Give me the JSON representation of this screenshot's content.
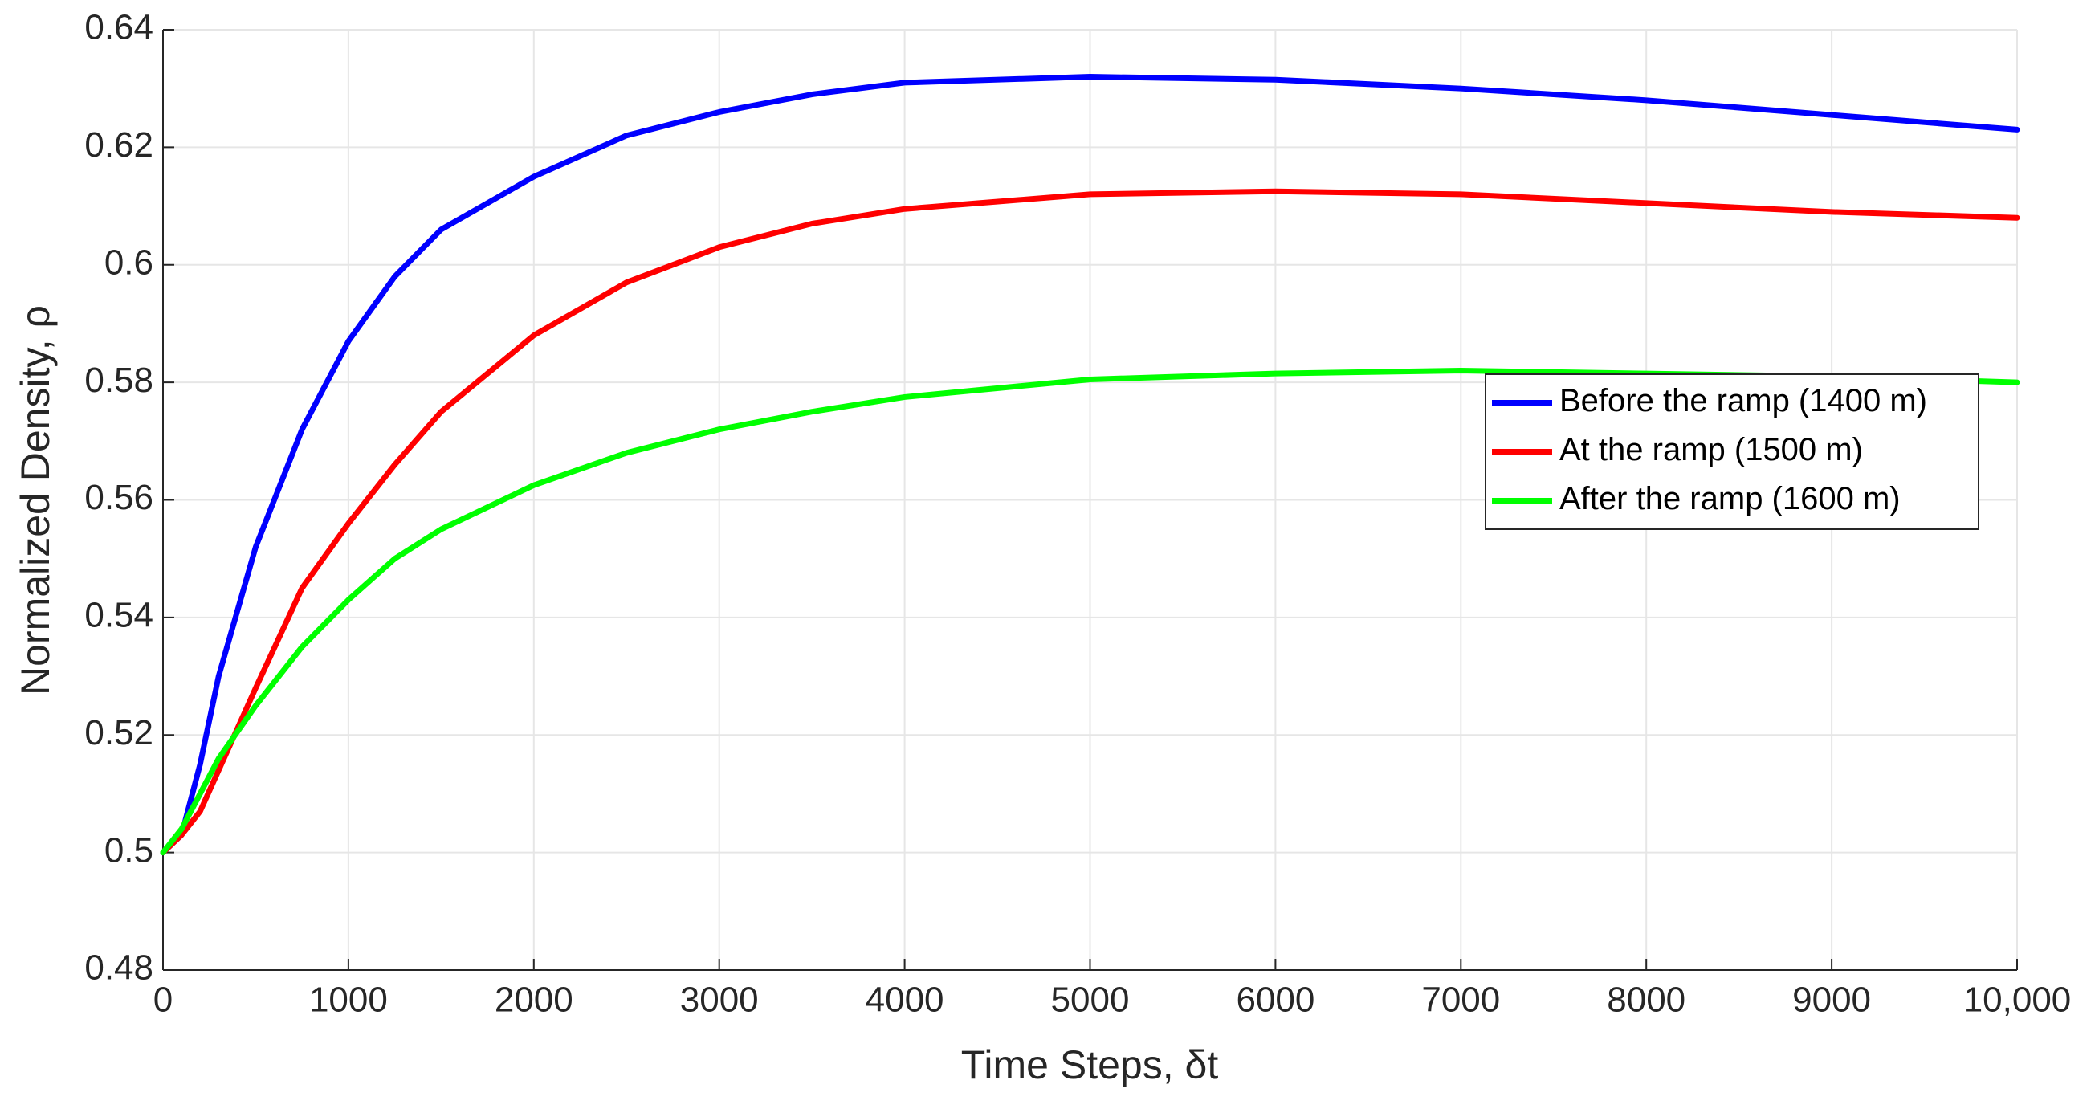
{
  "chart_data": {
    "type": "line",
    "xlabel": "Time Steps, δt",
    "ylabel": "Normalized Density, ρ",
    "x": [
      0,
      100,
      200,
      300,
      500,
      750,
      1000,
      1250,
      1500,
      2000,
      2500,
      3000,
      3500,
      4000,
      5000,
      6000,
      7000,
      8000,
      9000,
      10000
    ],
    "series": [
      {
        "name": "Before the ramp (1400 m)",
        "color": "#0000ff",
        "values": [
          0.5,
          0.503,
          0.515,
          0.53,
          0.552,
          0.572,
          0.587,
          0.598,
          0.606,
          0.615,
          0.622,
          0.626,
          0.629,
          0.631,
          0.632,
          0.6315,
          0.63,
          0.628,
          0.6255,
          0.623
        ]
      },
      {
        "name": "At the ramp (1500 m)",
        "color": "#ff0000",
        "values": [
          0.5,
          0.503,
          0.507,
          0.514,
          0.528,
          0.545,
          0.556,
          0.566,
          0.575,
          0.588,
          0.597,
          0.603,
          0.607,
          0.6095,
          0.612,
          0.6125,
          0.612,
          0.6105,
          0.609,
          0.608
        ]
      },
      {
        "name": "After the ramp (1600 m)",
        "color": "#00ff00",
        "values": [
          0.5,
          0.504,
          0.51,
          0.516,
          0.525,
          0.535,
          0.543,
          0.55,
          0.555,
          0.5625,
          0.568,
          0.572,
          0.575,
          0.5775,
          0.5805,
          0.5815,
          0.582,
          0.5815,
          0.581,
          0.58
        ]
      }
    ],
    "xlim": [
      0,
      10000
    ],
    "xticks": [
      0,
      1000,
      2000,
      3000,
      4000,
      5000,
      6000,
      7000,
      8000,
      9000,
      {
        "value": 10000,
        "label": "10,000"
      }
    ],
    "ylim": [
      0.48,
      0.64
    ],
    "yticks": [
      0.48,
      0.5,
      0.52,
      0.54,
      0.56,
      0.58,
      0.6,
      0.62,
      0.64
    ],
    "grid": true,
    "legend": "east"
  }
}
